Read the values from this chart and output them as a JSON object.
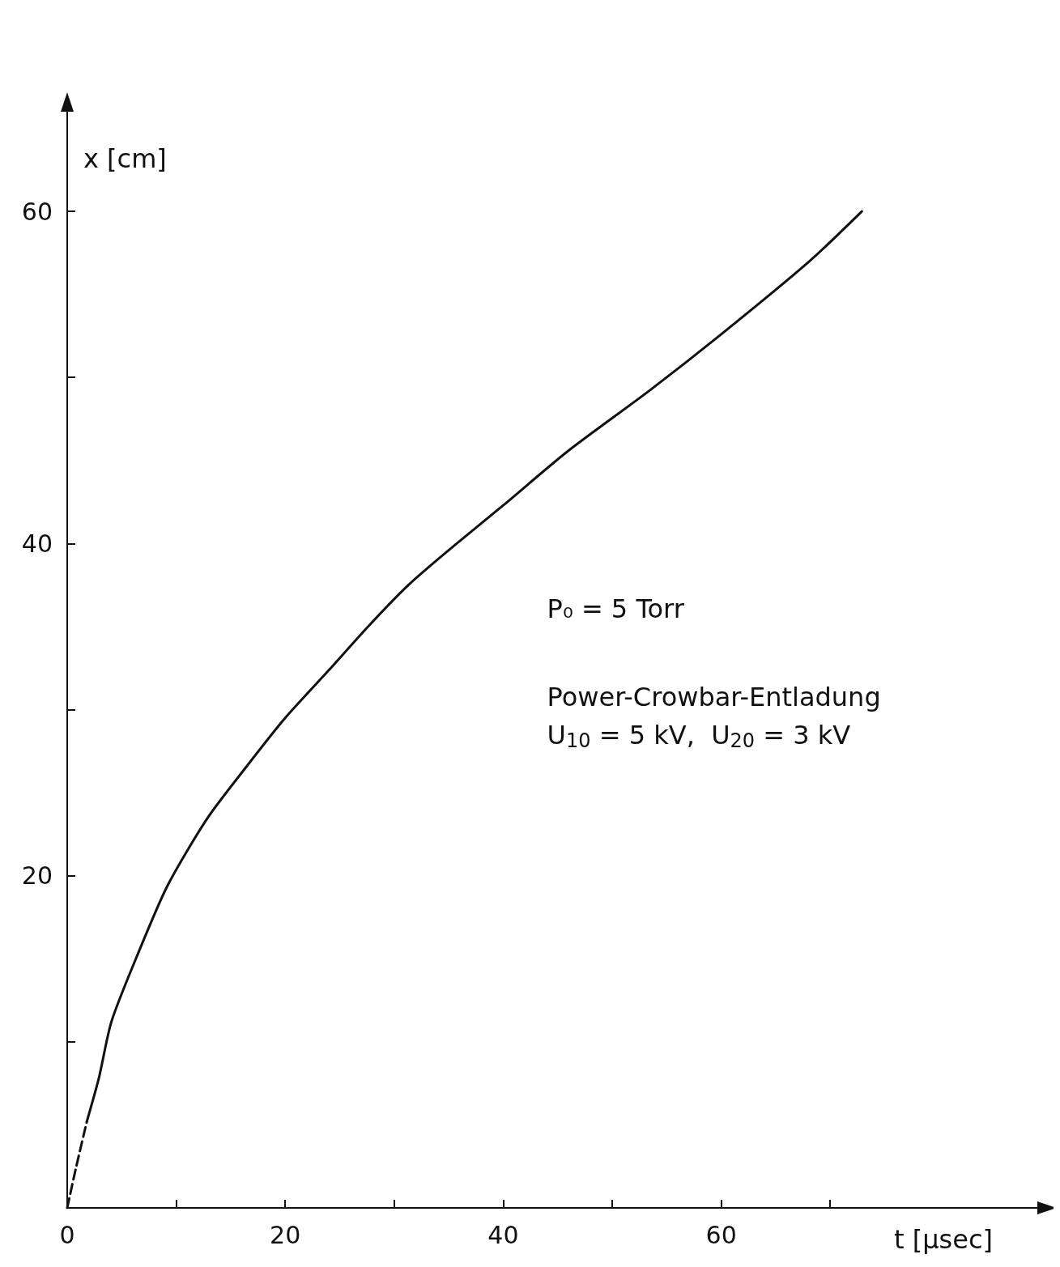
{
  "chart_data": {
    "type": "line",
    "xlabel": "t [μsec]",
    "ylabel": "x [cm]",
    "xlim": [
      0,
      89
    ],
    "ylim": [
      0,
      66
    ],
    "xticks": [
      0,
      {
        "value": 10,
        "label": null
      },
      20,
      {
        "value": 30,
        "label": null
      },
      40,
      {
        "value": 50,
        "label": null
      },
      60,
      {
        "value": 70,
        "label": null
      }
    ],
    "yticks": [
      {
        "value": 10,
        "label": null
      },
      20,
      {
        "value": 30,
        "label": null
      },
      40,
      {
        "value": 50,
        "label": null
      },
      60
    ],
    "grid": false,
    "marker": "none",
    "series": [
      {
        "color": "#111111",
        "line_style": "dashed",
        "x": [
          0,
          0.8,
          1.8
        ],
        "values": [
          0,
          2.4,
          5.2
        ]
      },
      {
        "color": "#111111",
        "line_style": "solid",
        "x": [
          1.8,
          2.9,
          4.05,
          6.3,
          9.2,
          12.9,
          16.6,
          20,
          23.9,
          27.6,
          31.3,
          35,
          40,
          46,
          53.4,
          60,
          68.1,
          72.9
        ],
        "values": [
          5.2,
          7.8,
          11.2,
          15.0,
          19.4,
          23.5,
          26.7,
          29.5,
          32.3,
          35,
          37.5,
          39.6,
          42.3,
          45.6,
          49.2,
          52.6,
          57,
          60
        ]
      }
    ],
    "annotations": [
      "P₀ = 5 Torr",
      "Power-Crowbar-Entladung",
      "U$_{10}$ = 5 kV,  U$_{20}$ = 3 kV"
    ]
  }
}
